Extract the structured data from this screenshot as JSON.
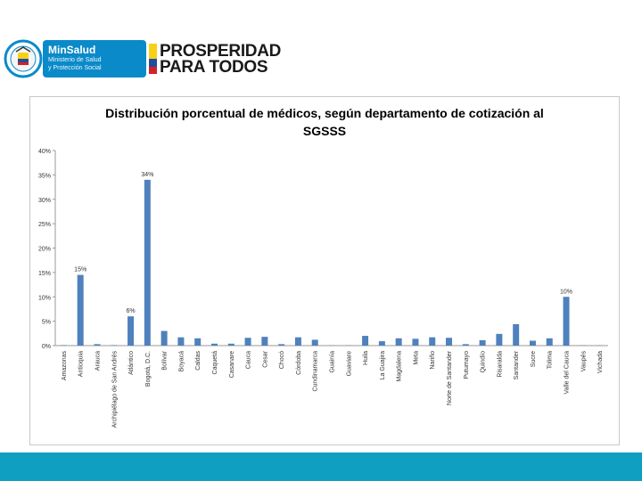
{
  "header": {
    "minsalud_title": "MinSalud",
    "minsalud_line1": "Ministerio de Salud",
    "minsalud_line2": "y Protección Social",
    "prosperidad_line1": "PROSPERIDAD",
    "prosperidad_line2": "PARA TODOS"
  },
  "colors": {
    "bar": "#4f81bd",
    "brand_blue": "#0a8ac9",
    "footer": "#0e9fc1",
    "flag_yellow": "#f7d117",
    "flag_blue": "#1f4e9a",
    "flag_red": "#d62027"
  },
  "chart_data": {
    "type": "bar",
    "title_line1": "Distribución porcentual de médicos, según departamento de cotización al",
    "title_line2": "SGSSS",
    "xlabel": "",
    "ylabel": "",
    "ylim": [
      0,
      40
    ],
    "grid": false,
    "y_ticks": [
      "0%",
      "5%",
      "10%",
      "15%",
      "20%",
      "25%",
      "30%",
      "35%",
      "40%"
    ],
    "y_tick_values": [
      0,
      5,
      10,
      15,
      20,
      25,
      30,
      35,
      40
    ],
    "categories": [
      "Amazonas",
      "Antioquia",
      "Arauca",
      "Archipiélago de San Andrés",
      "Atlántico",
      "Bogotá, D.C.",
      "Bolívar",
      "Boyacá",
      "Caldas",
      "Caquetá",
      "Casanare",
      "Cauca",
      "Cesar",
      "Chocó",
      "Córdoba",
      "Cundinamarca",
      "Guainía",
      "Guaviare",
      "Huila",
      "La Guajira",
      "Magdalena",
      "Meta",
      "Nariño",
      "Norte de Santander",
      "Putumayo",
      "Quindío",
      "Risaralda",
      "Santander",
      "Sucre",
      "Tolima",
      "Valle del Cauca",
      "Vaupés",
      "Vichada"
    ],
    "values": [
      0.1,
      14.5,
      0.3,
      0.1,
      6.0,
      34.0,
      3.0,
      1.7,
      1.5,
      0.4,
      0.4,
      1.6,
      1.8,
      0.3,
      1.7,
      1.2,
      0.05,
      0.05,
      2.0,
      0.9,
      1.5,
      1.4,
      1.7,
      1.6,
      0.3,
      1.1,
      2.4,
      4.4,
      1.0,
      1.5,
      10.0,
      0.05,
      0.05
    ],
    "data_labels": [
      {
        "index": 1,
        "text": "15%"
      },
      {
        "index": 4,
        "text": "6%"
      },
      {
        "index": 5,
        "text": "34%"
      },
      {
        "index": 30,
        "text": "10%"
      }
    ]
  }
}
